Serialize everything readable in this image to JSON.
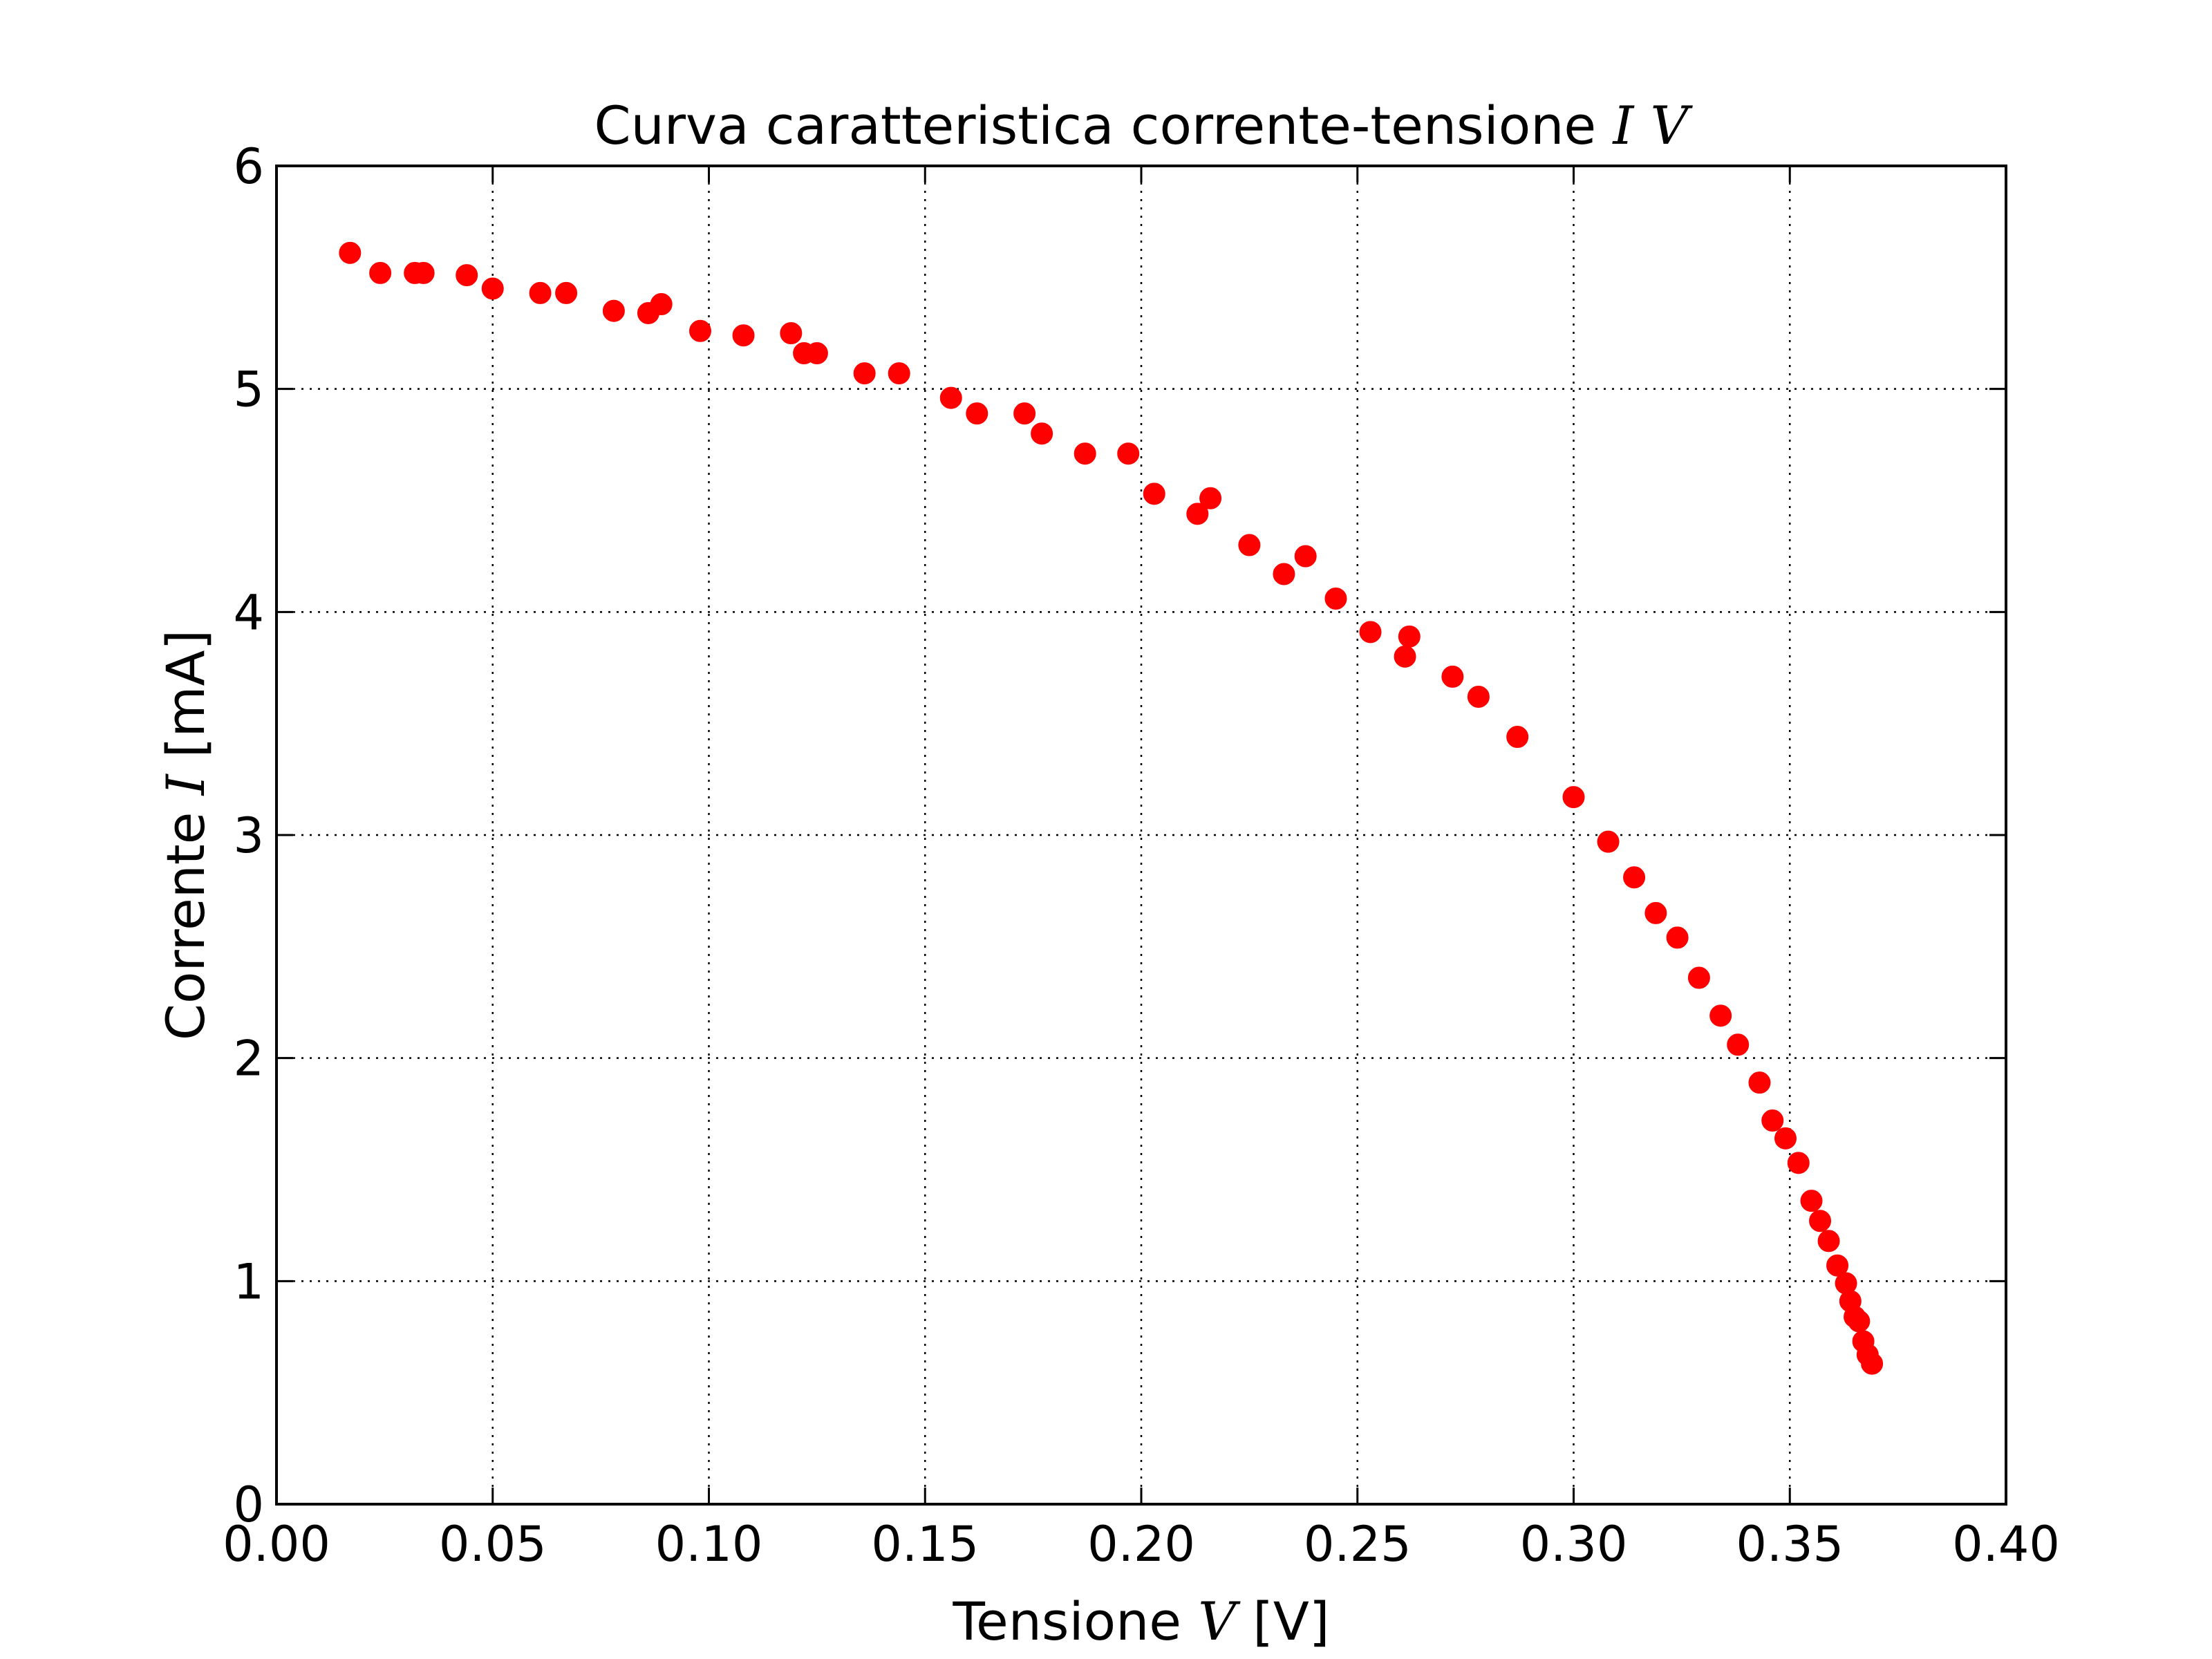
{
  "chart_data": {
    "type": "scatter",
    "title": {
      "text": "Curva caratteristica corrente-tensione ",
      "math": "I V"
    },
    "xlabel": {
      "text": "Tensione ",
      "math": "V",
      "unit": "[V]"
    },
    "ylabel": {
      "text": "Corrente ",
      "math": "I",
      "unit": "[mA]"
    },
    "xlim": [
      0.0,
      0.4
    ],
    "ylim": [
      0,
      6
    ],
    "xticks": [
      0.0,
      0.05,
      0.1,
      0.15,
      0.2,
      0.25,
      0.3,
      0.35,
      0.4
    ],
    "xtick_labels": [
      "0.00",
      "0.05",
      "0.10",
      "0.15",
      "0.20",
      "0.25",
      "0.30",
      "0.35",
      "0.40"
    ],
    "yticks": [
      0,
      1,
      2,
      3,
      4,
      5,
      6
    ],
    "ytick_labels": [
      "0",
      "1",
      "2",
      "3",
      "4",
      "5",
      "6"
    ],
    "grid": true,
    "marker_color": "#ff0000",
    "series": [
      {
        "x": [
          0.017,
          0.024,
          0.032,
          0.034,
          0.044,
          0.05,
          0.061,
          0.067,
          0.078,
          0.086,
          0.089,
          0.098,
          0.108,
          0.119,
          0.122,
          0.125,
          0.136,
          0.144,
          0.156,
          0.162,
          0.173,
          0.177,
          0.187,
          0.197,
          0.203,
          0.213,
          0.216,
          0.225,
          0.233,
          0.238,
          0.245,
          0.253,
          0.261,
          0.262,
          0.272,
          0.278,
          0.287,
          0.3,
          0.308,
          0.314,
          0.319,
          0.324,
          0.329,
          0.334,
          0.338,
          0.343,
          0.346,
          0.349,
          0.352,
          0.355,
          0.357,
          0.359,
          0.361,
          0.363,
          0.364,
          0.365,
          0.366,
          0.367,
          0.368,
          0.369
        ],
        "y": [
          5.61,
          5.52,
          5.52,
          5.52,
          5.51,
          5.45,
          5.43,
          5.43,
          5.35,
          5.34,
          5.38,
          5.26,
          5.24,
          5.25,
          5.16,
          5.16,
          5.07,
          5.07,
          4.96,
          4.89,
          4.89,
          4.8,
          4.71,
          4.71,
          4.53,
          4.44,
          4.51,
          4.3,
          4.17,
          4.25,
          4.06,
          3.91,
          3.8,
          3.89,
          3.71,
          3.62,
          3.44,
          3.17,
          2.97,
          2.81,
          2.65,
          2.54,
          2.36,
          2.19,
          2.06,
          1.89,
          1.72,
          1.64,
          1.53,
          1.36,
          1.27,
          1.18,
          1.07,
          0.99,
          0.91,
          0.84,
          0.82,
          0.73,
          0.67,
          0.63
        ]
      }
    ]
  }
}
